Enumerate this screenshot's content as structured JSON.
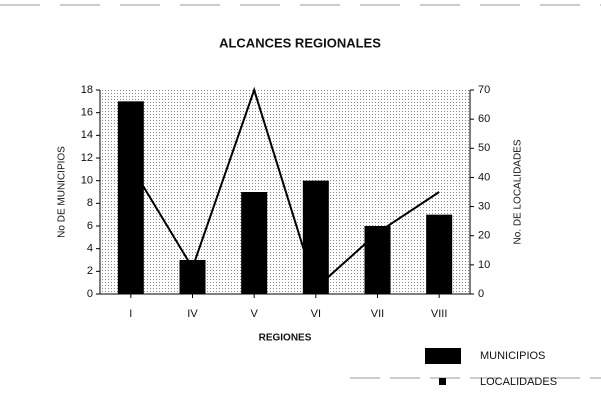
{
  "chart_data": {
    "type": "combo",
    "title": "ALCANCES REGIONALES",
    "x_label": "REGIONES",
    "y_label": "No DE MUNICIPIOS",
    "y2_label": "No. DE LOCALIDADES",
    "categories": [
      "I",
      "IV",
      "V",
      "VI",
      "VII",
      "VIII"
    ],
    "series": [
      {
        "name": "MUNICIPIOS",
        "type": "bar",
        "color": "#000000",
        "values": [
          17,
          3,
          9,
          10,
          6,
          7
        ]
      },
      {
        "name": "LOCALIDADES",
        "type": "line",
        "axis": "y2",
        "color": "#000000",
        "values": [
          44,
          9,
          70,
          2,
          21,
          35
        ]
      }
    ],
    "ylim": [
      0,
      18
    ],
    "yticks": [
      0,
      2,
      4,
      6,
      8,
      10,
      12,
      14,
      16,
      18
    ],
    "y2lim": [
      0,
      70
    ],
    "y2ticks": [
      0,
      10,
      20,
      30,
      40,
      50,
      60,
      70
    ],
    "legend": "bottom-right"
  }
}
